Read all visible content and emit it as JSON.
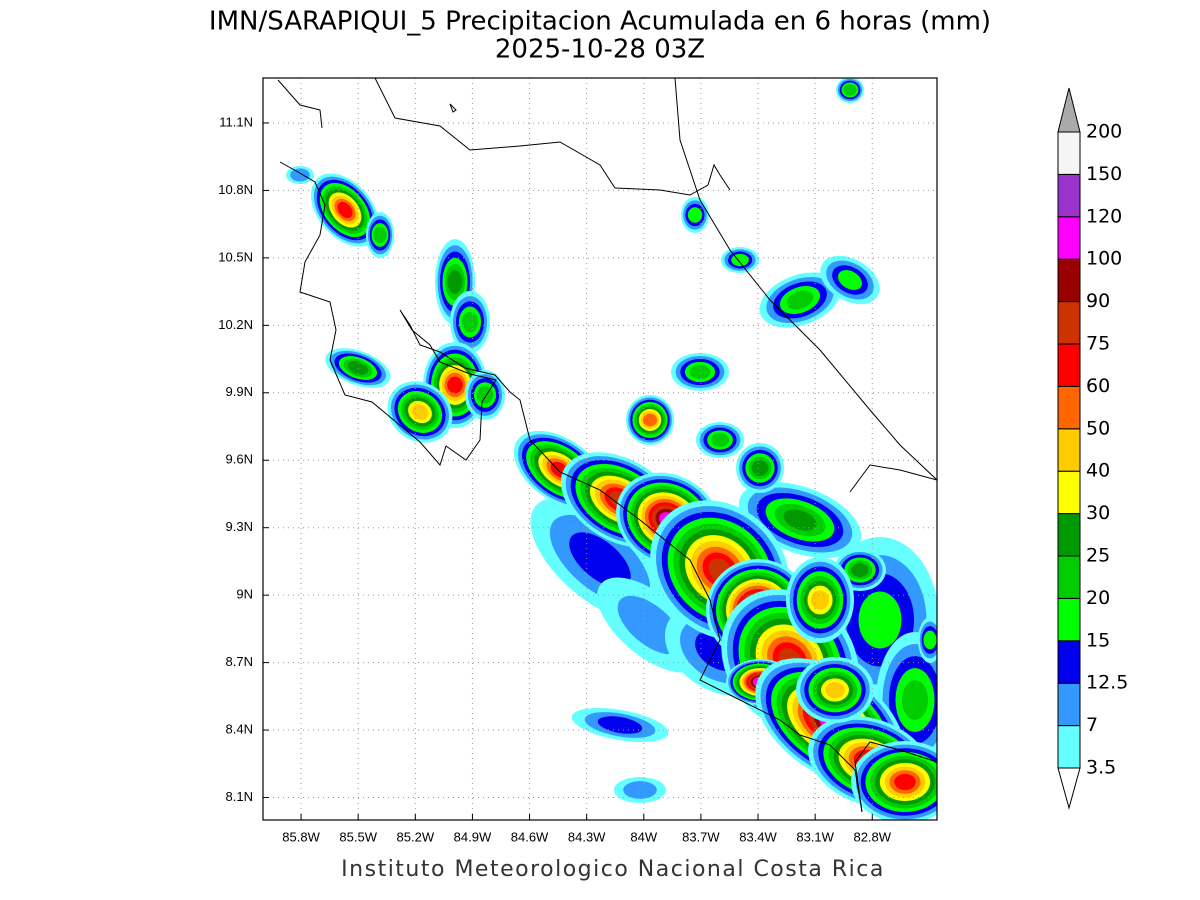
{
  "header": {
    "title": "IMN/SARAPIQUI_5 Precipitacion Acumulada en 6 horas (mm)",
    "subtitle": "2025-10-28 03Z"
  },
  "map": {
    "xlim": [
      -86.0,
      -82.46
    ],
    "ylim": [
      8.0,
      11.3
    ],
    "xticks": [
      {
        "value": -85.8,
        "label": "85.8W"
      },
      {
        "value": -85.5,
        "label": "85.5W"
      },
      {
        "value": -85.2,
        "label": "85.2W"
      },
      {
        "value": -84.9,
        "label": "84.9W"
      },
      {
        "value": -84.6,
        "label": "84.6W"
      },
      {
        "value": -84.3,
        "label": "84.3W"
      },
      {
        "value": -84.0,
        "label": "84W"
      },
      {
        "value": -83.7,
        "label": "83.7W"
      },
      {
        "value": -83.4,
        "label": "83.4W"
      },
      {
        "value": -83.1,
        "label": "83.1W"
      },
      {
        "value": -82.8,
        "label": "82.8W"
      }
    ],
    "yticks": [
      {
        "value": 8.1,
        "label": "8.1N"
      },
      {
        "value": 8.4,
        "label": "8.4N"
      },
      {
        "value": 8.7,
        "label": "8.7N"
      },
      {
        "value": 9.0,
        "label": "9N"
      },
      {
        "value": 9.3,
        "label": "9.3N"
      },
      {
        "value": 9.6,
        "label": "9.6N"
      },
      {
        "value": 9.9,
        "label": "9.9N"
      },
      {
        "value": 10.2,
        "label": "10.2N"
      },
      {
        "value": 10.5,
        "label": "10.5N"
      },
      {
        "value": 10.8,
        "label": "10.8N"
      },
      {
        "value": 11.1,
        "label": "11.1N"
      }
    ],
    "grid": true
  },
  "colorbar": {
    "levels": [
      3.5,
      7,
      12.5,
      15,
      20,
      25,
      30,
      40,
      50,
      60,
      75,
      90,
      100,
      120,
      150,
      200
    ],
    "colors": [
      "#66ffff",
      "#3399ff",
      "#0000ee",
      "#00ff00",
      "#00cc00",
      "#009900",
      "#ffff00",
      "#ffcc00",
      "#ff6600",
      "#ff0000",
      "#cc3300",
      "#990000",
      "#ff00ff",
      "#9933cc",
      "#f5f5f5"
    ],
    "under_color": "#ffffff",
    "over_color": "#aaaaaa"
  },
  "footer": "Instituto Meteorologico Nacional Costa Rica"
}
